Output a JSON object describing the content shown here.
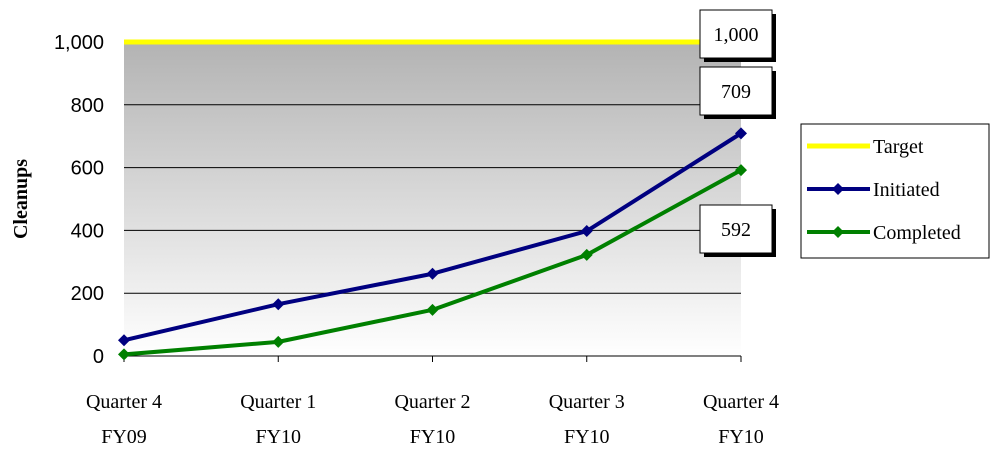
{
  "chart_data": {
    "type": "line",
    "title": "",
    "xlabel": "",
    "ylabel": "Cleanups",
    "categories": [
      [
        "Quarter 4",
        "FY09"
      ],
      [
        "Quarter 1",
        "FY10"
      ],
      [
        "Quarter 2",
        "FY10"
      ],
      [
        "Quarter 3",
        "FY10"
      ],
      [
        "Quarter 4",
        "FY10"
      ]
    ],
    "ylim": [
      0,
      1000
    ],
    "yticks": [
      0,
      200,
      400,
      600,
      800,
      1000
    ],
    "ytick_labels": [
      "0",
      "200",
      "400",
      "600",
      "800",
      "1,000"
    ],
    "grid": true,
    "legend": "right",
    "series": [
      {
        "name": "Target",
        "color": "#ffff00",
        "marker": "none",
        "values": [
          1000,
          1000,
          1000,
          1000,
          1000
        ]
      },
      {
        "name": "Initiated",
        "color": "#000080",
        "marker": "diamond",
        "values": [
          50,
          165,
          262,
          398,
          709
        ]
      },
      {
        "name": "Completed",
        "color": "#008000",
        "marker": "diamond",
        "values": [
          5,
          45,
          147,
          322,
          592
        ]
      }
    ],
    "annotations": [
      {
        "text": "1,000",
        "series": "Target"
      },
      {
        "text": "709",
        "series": "Initiated"
      },
      {
        "text": "592",
        "series": "Completed"
      }
    ]
  }
}
